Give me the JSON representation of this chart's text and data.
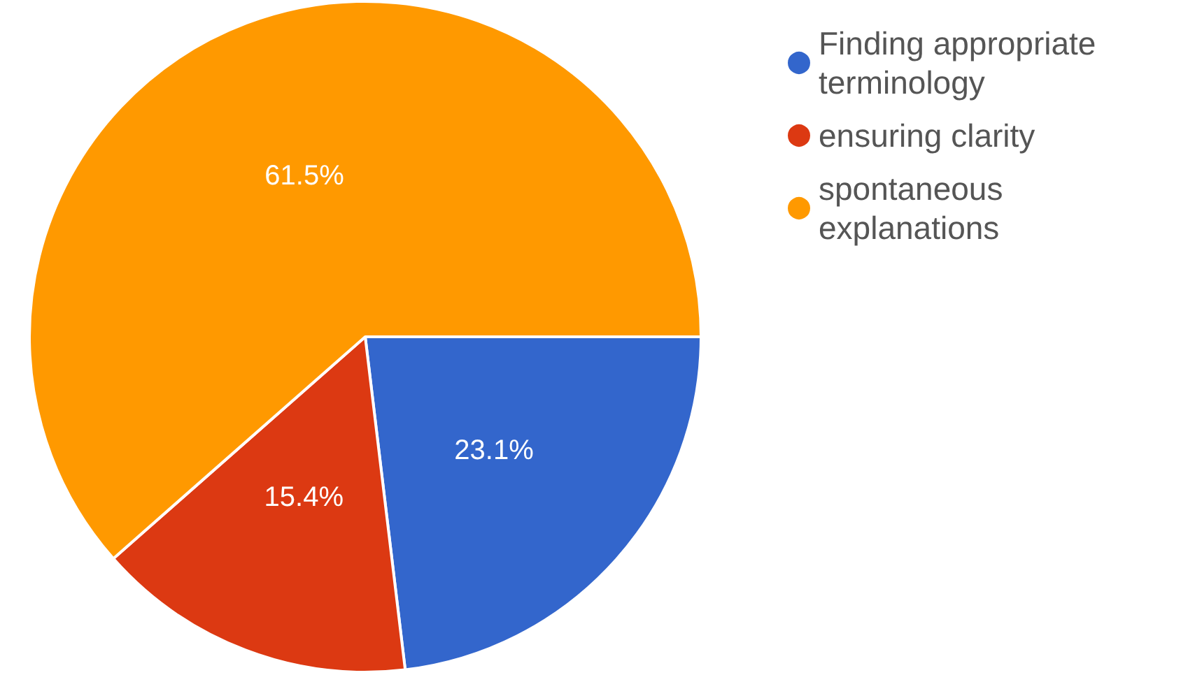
{
  "chart_data": {
    "type": "pie",
    "categories": [
      "Finding appropriate terminology",
      "ensuring clarity",
      "spontaneous explanations"
    ],
    "values": [
      23.1,
      15.4,
      61.5
    ],
    "colors": [
      "#3366cc",
      "#dc3912",
      "#ff9900"
    ],
    "value_labels": [
      "23.1%",
      "15.4%",
      "61.5%"
    ],
    "legend": "top right"
  }
}
